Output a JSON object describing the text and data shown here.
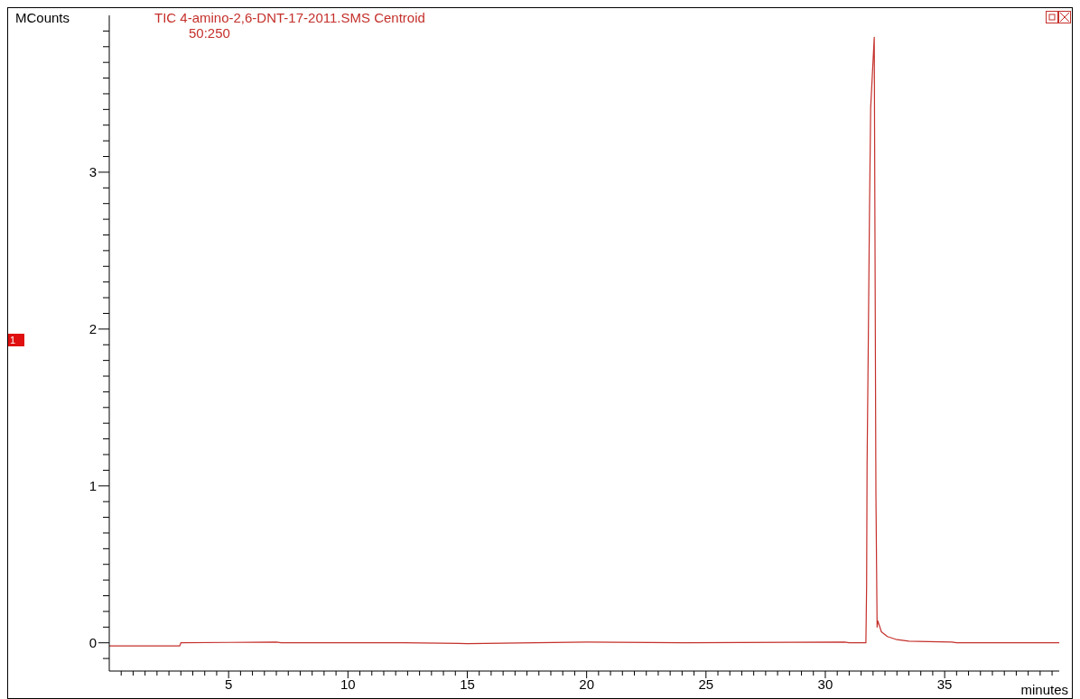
{
  "chart_data": {
    "type": "line",
    "title": "TIC 4-amino-2,6-DNT-17-2011.SMS Centroid",
    "subtitle": "50:250",
    "xlabel": "minutes",
    "ylabel": "MCounts",
    "annotations": [
      "1"
    ],
    "x": [
      0,
      2.95,
      3.0,
      7.0,
      7.2,
      12.3,
      15,
      20,
      24,
      30.8,
      31.0,
      31.7,
      31.73,
      31.75,
      31.8,
      31.85,
      31.9,
      32.05,
      32.12,
      32.17,
      32.2,
      32.35,
      32.6,
      33.0,
      33.5,
      35.3,
      35.5,
      39.8
    ],
    "series": [
      {
        "color": "#c4302b",
        "values": [
          -0.02,
          -0.02,
          0.0,
          0.005,
          0.0,
          0.0,
          -0.005,
          0.005,
          0.0,
          0.005,
          0.0,
          0.0,
          0.36,
          1.14,
          1.91,
          2.74,
          3.41,
          3.86,
          0.95,
          0.1,
          0.14,
          0.07,
          0.04,
          0.02,
          0.01,
          0.005,
          0.0,
          0.0
        ]
      }
    ],
    "xlim": [
      0,
      39.8
    ],
    "ylim": [
      -0.18,
      4.0
    ],
    "xticks": [
      {
        "value": 0.5,
        "label": null
      },
      {
        "value": 1,
        "label": null
      },
      {
        "value": 1.5,
        "label": null
      },
      {
        "value": 2,
        "label": null
      },
      {
        "value": 2.5,
        "label": null
      },
      {
        "value": 3,
        "label": null
      },
      {
        "value": 3.5,
        "label": null
      },
      {
        "value": 4,
        "label": null
      },
      {
        "value": 4.5,
        "label": null
      },
      5,
      {
        "value": 5.5,
        "label": null
      },
      {
        "value": 6,
        "label": null
      },
      {
        "value": 6.5,
        "label": null
      },
      {
        "value": 7,
        "label": null
      },
      {
        "value": 7.5,
        "label": null
      },
      {
        "value": 8,
        "label": null
      },
      {
        "value": 8.5,
        "label": null
      },
      {
        "value": 9,
        "label": null
      },
      {
        "value": 9.5,
        "label": null
      },
      10,
      {
        "value": 10.5,
        "label": null
      },
      {
        "value": 11,
        "label": null
      },
      {
        "value": 11.5,
        "label": null
      },
      {
        "value": 12,
        "label": null
      },
      {
        "value": 12.5,
        "label": null
      },
      {
        "value": 13,
        "label": null
      },
      {
        "value": 13.5,
        "label": null
      },
      {
        "value": 14,
        "label": null
      },
      {
        "value": 14.5,
        "label": null
      },
      15,
      {
        "value": 15.5,
        "label": null
      },
      {
        "value": 16,
        "label": null
      },
      {
        "value": 16.5,
        "label": null
      },
      {
        "value": 17,
        "label": null
      },
      {
        "value": 17.5,
        "label": null
      },
      {
        "value": 18,
        "label": null
      },
      {
        "value": 18.5,
        "label": null
      },
      {
        "value": 19,
        "label": null
      },
      {
        "value": 19.5,
        "label": null
      },
      20,
      {
        "value": 20.5,
        "label": null
      },
      {
        "value": 21,
        "label": null
      },
      {
        "value": 21.5,
        "label": null
      },
      {
        "value": 22,
        "label": null
      },
      {
        "value": 22.5,
        "label": null
      },
      {
        "value": 23,
        "label": null
      },
      {
        "value": 23.5,
        "label": null
      },
      {
        "value": 24,
        "label": null
      },
      {
        "value": 24.5,
        "label": null
      },
      25,
      {
        "value": 25.5,
        "label": null
      },
      {
        "value": 26,
        "label": null
      },
      {
        "value": 26.5,
        "label": null
      },
      {
        "value": 27,
        "label": null
      },
      {
        "value": 27.5,
        "label": null
      },
      {
        "value": 28,
        "label": null
      },
      {
        "value": 28.5,
        "label": null
      },
      {
        "value": 29,
        "label": null
      },
      {
        "value": 29.5,
        "label": null
      },
      30,
      {
        "value": 30.5,
        "label": null
      },
      {
        "value": 31,
        "label": null
      },
      {
        "value": 31.5,
        "label": null
      },
      {
        "value": 32,
        "label": null
      },
      {
        "value": 32.5,
        "label": null
      },
      {
        "value": 33,
        "label": null
      },
      {
        "value": 33.5,
        "label": null
      },
      {
        "value": 34,
        "label": null
      },
      {
        "value": 34.5,
        "label": null
      },
      35,
      {
        "value": 35.5,
        "label": null
      },
      {
        "value": 36,
        "label": null
      },
      {
        "value": 36.5,
        "label": null
      },
      {
        "value": 37,
        "label": null
      },
      {
        "value": 37.5,
        "label": null
      },
      {
        "value": 38,
        "label": null
      },
      {
        "value": 38.5,
        "label": null
      },
      {
        "value": 39,
        "label": null
      },
      {
        "value": 39.5,
        "label": null
      }
    ],
    "yticks": [
      {
        "value": -0.1,
        "label": null
      },
      0,
      {
        "value": 0.1,
        "label": null
      },
      {
        "value": 0.2,
        "label": null
      },
      {
        "value": 0.3,
        "label": null
      },
      {
        "value": 0.4,
        "label": null
      },
      {
        "value": 0.5,
        "label": null
      },
      {
        "value": 0.6,
        "label": null
      },
      {
        "value": 0.7,
        "label": null
      },
      {
        "value": 0.8,
        "label": null
      },
      {
        "value": 0.9,
        "label": null
      },
      1,
      {
        "value": 1.1,
        "label": null
      },
      {
        "value": 1.2,
        "label": null
      },
      {
        "value": 1.3,
        "label": null
      },
      {
        "value": 1.4,
        "label": null
      },
      {
        "value": 1.5,
        "label": null
      },
      {
        "value": 1.6,
        "label": null
      },
      {
        "value": 1.7,
        "label": null
      },
      {
        "value": 1.8,
        "label": null
      },
      {
        "value": 1.9,
        "label": null
      },
      2,
      {
        "value": 2.1,
        "label": null
      },
      {
        "value": 2.2,
        "label": null
      },
      {
        "value": 2.3,
        "label": null
      },
      {
        "value": 2.4,
        "label": null
      },
      {
        "value": 2.5,
        "label": null
      },
      {
        "value": 2.6,
        "label": null
      },
      {
        "value": 2.7,
        "label": null
      },
      {
        "value": 2.8,
        "label": null
      },
      {
        "value": 2.9,
        "label": null
      },
      3,
      {
        "value": 3.1,
        "label": null
      },
      {
        "value": 3.2,
        "label": null
      },
      {
        "value": 3.3,
        "label": null
      },
      {
        "value": 3.4,
        "label": null
      },
      {
        "value": 3.5,
        "label": null
      },
      {
        "value": 3.6,
        "label": null
      },
      {
        "value": 3.7,
        "label": null
      },
      {
        "value": 3.8,
        "label": null
      },
      {
        "value": 3.9,
        "label": null
      }
    ],
    "grid": false,
    "legend": false,
    "marker": "none",
    "line_style": "solid"
  }
}
